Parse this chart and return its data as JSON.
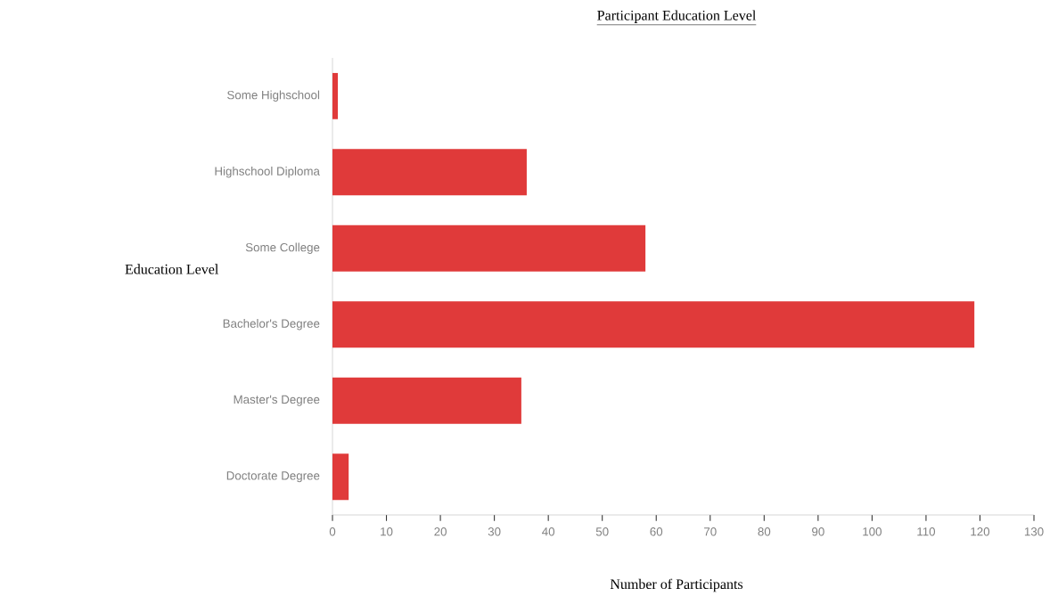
{
  "chart_data": {
    "type": "bar",
    "orientation": "horizontal",
    "title": "Participant Education Level",
    "xlabel": "Number of Participants",
    "ylabel": "Education Level",
    "categories": [
      "Some Highschool",
      "Highschool Diploma",
      "Some College",
      "Bachelor's Degree",
      "Master's Degree",
      "Doctorate Degree"
    ],
    "values": [
      1,
      36,
      58,
      119,
      35,
      3
    ],
    "color": "#e03a3a",
    "xlim": [
      0,
      130
    ],
    "xticks": [
      0,
      10,
      20,
      30,
      40,
      50,
      60,
      70,
      80,
      90,
      100,
      110,
      120,
      130
    ],
    "grid": false
  }
}
